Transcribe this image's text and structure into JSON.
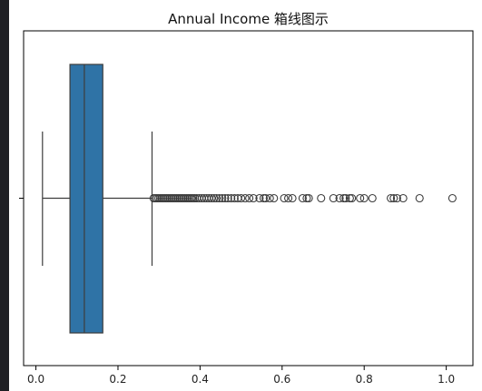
{
  "chart_data": {
    "type": "box",
    "title": "Annual Income 箱线图示",
    "xlabel": "",
    "ylabel": "",
    "xlim": [
      -0.03,
      1.065
    ],
    "xticks": [
      0.0,
      0.2,
      0.4,
      0.6,
      0.8,
      1.0
    ],
    "xtick_labels": [
      "0.0",
      "0.2",
      "0.4",
      "0.6",
      "0.8",
      "1.0"
    ],
    "grid": false,
    "orientation": "horizontal",
    "box": {
      "min_whisker": 0.016,
      "q1": 0.083,
      "median": 0.118,
      "q3": 0.163,
      "max_whisker": 0.283,
      "color": "#2f73a6"
    },
    "outliers": [
      0.287,
      0.291,
      0.295,
      0.299,
      0.303,
      0.307,
      0.311,
      0.315,
      0.319,
      0.323,
      0.327,
      0.331,
      0.335,
      0.339,
      0.343,
      0.347,
      0.351,
      0.355,
      0.359,
      0.363,
      0.367,
      0.371,
      0.375,
      0.379,
      0.383,
      0.387,
      0.392,
      0.398,
      0.404,
      0.41,
      0.416,
      0.422,
      0.428,
      0.434,
      0.44,
      0.447,
      0.454,
      0.461,
      0.468,
      0.476,
      0.484,
      0.492,
      0.5,
      0.51,
      0.52,
      0.53,
      0.545,
      0.555,
      0.56,
      0.57,
      0.58,
      0.605,
      0.615,
      0.625,
      0.65,
      0.66,
      0.665,
      0.695,
      0.725,
      0.74,
      0.75,
      0.755,
      0.765,
      0.77,
      0.79,
      0.8,
      0.82,
      0.865,
      0.872,
      0.88,
      0.895,
      0.935,
      1.015
    ],
    "outlier_color": "#3a3a3a"
  }
}
